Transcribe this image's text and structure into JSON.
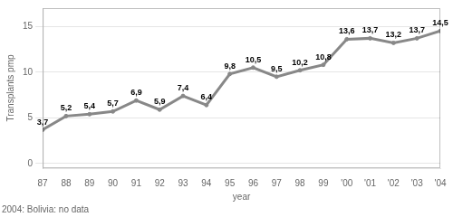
{
  "chart_data": {
    "type": "line",
    "ylabel": "Transplants pmp",
    "xlabel": "year",
    "footnote": "2004: Bolivia: no data",
    "categories": [
      "87",
      "88",
      "89",
      "90",
      "91",
      "92",
      "93",
      "94",
      "95",
      "96",
      "97",
      "98",
      "99",
      "'00",
      "'01",
      "'02",
      "'03",
      "'04"
    ],
    "values": [
      3.7,
      5.2,
      5.4,
      5.7,
      6.9,
      5.9,
      7.4,
      6.4,
      9.8,
      10.5,
      9.5,
      10.2,
      10.8,
      13.6,
      13.7,
      13.2,
      13.7,
      14.5
    ],
    "value_labels": [
      "3,7",
      "5,2",
      "5,4",
      "5,7",
      "6,9",
      "5,9",
      "7,4",
      "6,4",
      "9,8",
      "10,5",
      "9,5",
      "10,2",
      "10,8",
      "13,6",
      "13,7",
      "13,2",
      "13,7",
      "14,5"
    ],
    "data_labels": true,
    "color": "#888888",
    "ylim": [
      -0.5,
      17
    ],
    "yticks": [
      0,
      5,
      10,
      15
    ],
    "grid": true
  }
}
